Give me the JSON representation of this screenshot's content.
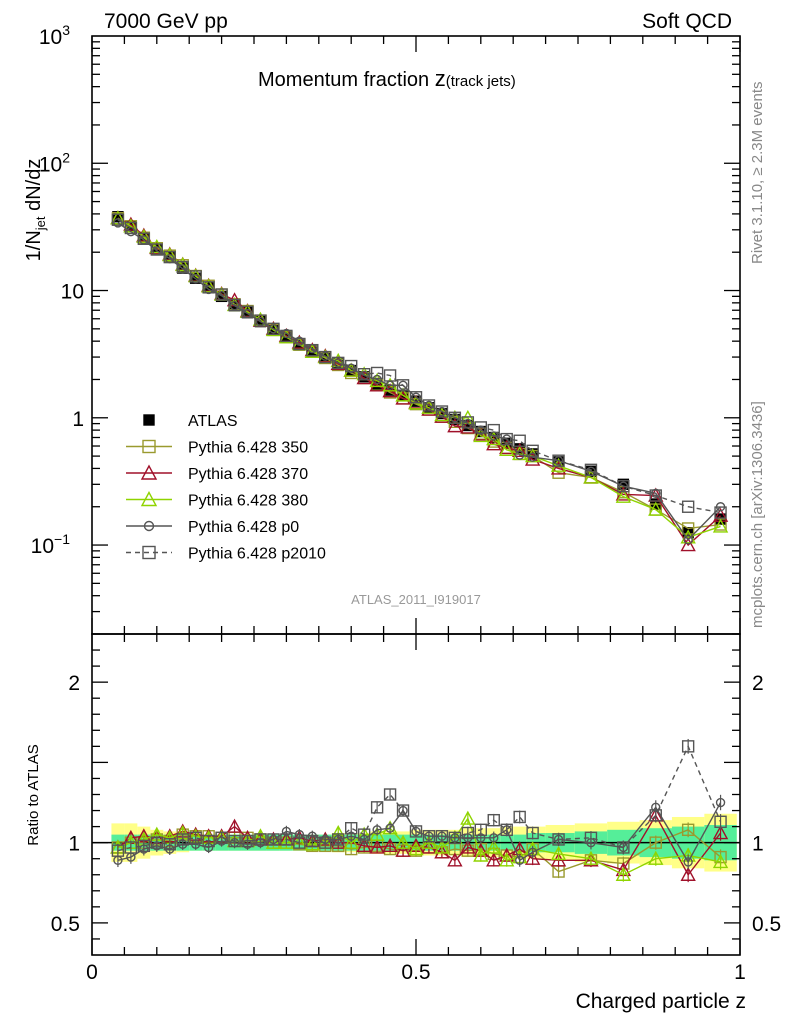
{
  "header": {
    "left": "7000 GeV pp",
    "right": "Soft QCD"
  },
  "side_labels": {
    "rivet": "Rivet 3.1.10, ≥ 2.3M events",
    "mcplots": "mcplots.cern.ch [arXiv:1306.3436]"
  },
  "watermark": "ATLAS_2011_I919017",
  "chart_data": [
    {
      "type": "line",
      "title": "Momentum fraction",
      "title_suffix": "(track jets)",
      "ylabel": "1/N_jet dN/dz",
      "yscale": "log",
      "ylim": [
        0.02,
        1000
      ],
      "xlim": [
        0,
        1.0
      ],
      "ytick_labels": [
        "10^-1",
        "1",
        "10",
        "10^2",
        "10^3"
      ],
      "legend_position": "lower-left",
      "x": [
        0.04,
        0.06,
        0.08,
        0.1,
        0.12,
        0.14,
        0.16,
        0.18,
        0.2,
        0.22,
        0.24,
        0.26,
        0.28,
        0.3,
        0.32,
        0.34,
        0.36,
        0.38,
        0.4,
        0.42,
        0.44,
        0.46,
        0.48,
        0.5,
        0.52,
        0.54,
        0.56,
        0.58,
        0.6,
        0.62,
        0.64,
        0.66,
        0.68,
        0.72,
        0.77,
        0.82,
        0.87,
        0.92,
        0.97
      ],
      "series": [
        {
          "name": "ATLAS",
          "color": "#000000",
          "marker": "filled-square",
          "values": [
            38,
            32,
            26,
            21,
            18.5,
            15,
            12.5,
            10.5,
            9.0,
            7.6,
            6.7,
            5.7,
            4.9,
            4.3,
            3.8,
            3.35,
            3.0,
            2.65,
            2.35,
            2.1,
            1.85,
            1.65,
            1.5,
            1.35,
            1.2,
            1.08,
            0.97,
            0.87,
            0.78,
            0.7,
            0.63,
            0.57,
            0.52,
            0.45,
            0.38,
            0.3,
            0.21,
            0.125,
            0.16
          ]
        },
        {
          "name": "Pythia 6.428 350",
          "color": "#9a9a2e",
          "marker": "open-square",
          "values": [
            37,
            32,
            26,
            21.5,
            18.8,
            15.8,
            13.0,
            10.9,
            9.3,
            7.8,
            6.9,
            5.8,
            4.9,
            4.3,
            3.75,
            3.3,
            2.95,
            2.6,
            2.25,
            2.05,
            1.82,
            1.58,
            1.42,
            1.28,
            1.16,
            1.02,
            0.93,
            0.83,
            0.75,
            0.65,
            0.58,
            0.52,
            0.5,
            0.37,
            0.34,
            0.26,
            0.19,
            0.135,
            0.145
          ]
        },
        {
          "name": "Pythia 6.428 370",
          "color": "#a0102a",
          "marker": "open-triangle",
          "values": [
            37,
            33,
            27,
            21.6,
            19.2,
            16.0,
            13.1,
            10.9,
            9.4,
            8.4,
            6.9,
            5.8,
            5.0,
            4.4,
            3.9,
            3.4,
            3.05,
            2.65,
            2.35,
            2.05,
            1.8,
            1.62,
            1.42,
            1.32,
            1.16,
            1.02,
            0.86,
            0.84,
            0.74,
            0.62,
            0.58,
            0.55,
            0.47,
            0.4,
            0.34,
            0.25,
            0.245,
            0.1,
            0.17
          ]
        },
        {
          "name": "Pythia 6.428 380",
          "color": "#8fd400",
          "marker": "open-triangle",
          "values": [
            37,
            32,
            26.5,
            22,
            19.0,
            15.9,
            13.0,
            10.8,
            9.3,
            7.7,
            6.8,
            5.9,
            4.9,
            4.3,
            3.8,
            3.3,
            3.0,
            2.8,
            2.35,
            2.2,
            1.95,
            1.8,
            1.5,
            1.3,
            1.2,
            1.05,
            1.0,
            1.0,
            0.72,
            0.68,
            0.56,
            0.52,
            0.5,
            0.42,
            0.34,
            0.24,
            0.19,
            0.115,
            0.14
          ]
        },
        {
          "name": "Pythia 6.428 p0",
          "color": "#555555",
          "marker": "open-circle",
          "values": [
            34,
            29,
            25,
            20.5,
            17.8,
            14.8,
            12.4,
            10.2,
            9.1,
            7.6,
            6.6,
            5.7,
            5.0,
            4.6,
            4.0,
            3.5,
            3.05,
            2.7,
            2.45,
            2.15,
            2.0,
            1.8,
            1.8,
            1.45,
            1.25,
            1.12,
            1.0,
            0.9,
            0.8,
            0.72,
            0.68,
            0.51,
            0.49,
            0.46,
            0.38,
            0.29,
            0.255,
            0.11,
            0.2
          ]
        },
        {
          "name": "Pythia 6.428 p2010",
          "color": "#555555",
          "marker": "open-square",
          "dashed": true,
          "values": [
            36,
            31,
            25.5,
            21,
            18.3,
            15.3,
            12.9,
            10.6,
            9.3,
            7.7,
            6.8,
            5.8,
            5.0,
            4.4,
            3.8,
            3.4,
            3.0,
            2.7,
            2.55,
            2.2,
            2.25,
            2.15,
            1.8,
            1.45,
            1.25,
            1.12,
            1.0,
            0.92,
            0.84,
            0.8,
            0.68,
            0.66,
            0.55,
            0.46,
            0.39,
            0.29,
            0.245,
            0.2,
            0.18
          ]
        }
      ]
    },
    {
      "type": "line",
      "ylabel": "Ratio to ATLAS",
      "xlabel": "Charged particle z",
      "ylim": [
        0.3,
        2.3
      ],
      "xlim": [
        0,
        1.0
      ],
      "ytick_labels": [
        "0.5",
        "1",
        "2"
      ],
      "xtick_labels": [
        "0",
        "0.5",
        "1"
      ],
      "x": [
        0.04,
        0.06,
        0.08,
        0.1,
        0.12,
        0.14,
        0.16,
        0.18,
        0.2,
        0.22,
        0.24,
        0.26,
        0.28,
        0.3,
        0.32,
        0.34,
        0.36,
        0.38,
        0.4,
        0.42,
        0.44,
        0.46,
        0.48,
        0.5,
        0.52,
        0.54,
        0.56,
        0.58,
        0.6,
        0.62,
        0.64,
        0.66,
        0.68,
        0.72,
        0.77,
        0.82,
        0.87,
        0.92,
        0.97
      ],
      "band_stat_halfwidth": [
        0.05,
        0.05,
        0.05,
        0.05,
        0.05,
        0.05,
        0.05,
        0.05,
        0.05,
        0.05,
        0.05,
        0.05,
        0.05,
        0.05,
        0.05,
        0.05,
        0.05,
        0.05,
        0.05,
        0.05,
        0.05,
        0.05,
        0.05,
        0.05,
        0.05,
        0.05,
        0.05,
        0.05,
        0.05,
        0.05,
        0.05,
        0.05,
        0.06,
        0.06,
        0.07,
        0.08,
        0.09,
        0.1,
        0.11
      ],
      "band_total_halfwidth": [
        0.12,
        0.12,
        0.1,
        0.08,
        0.07,
        0.06,
        0.05,
        0.05,
        0.05,
        0.05,
        0.05,
        0.05,
        0.05,
        0.05,
        0.05,
        0.05,
        0.05,
        0.06,
        0.06,
        0.06,
        0.07,
        0.07,
        0.07,
        0.08,
        0.08,
        0.08,
        0.08,
        0.09,
        0.09,
        0.09,
        0.1,
        0.1,
        0.1,
        0.11,
        0.12,
        0.13,
        0.14,
        0.16,
        0.18
      ],
      "series": [
        {
          "name": "Pythia 6.428 350",
          "color": "#9a9a2e",
          "values": [
            0.97,
            1.0,
            1.0,
            1.02,
            1.01,
            1.05,
            1.04,
            1.04,
            1.03,
            1.03,
            1.03,
            1.02,
            1.0,
            1.0,
            0.99,
            0.98,
            0.98,
            0.98,
            0.96,
            0.97,
            0.98,
            0.96,
            0.95,
            0.95,
            0.97,
            0.94,
            0.96,
            0.95,
            0.96,
            0.93,
            0.92,
            0.91,
            0.96,
            0.82,
            0.89,
            0.87,
            1.0,
            1.08,
            0.91
          ]
        },
        {
          "name": "Pythia 6.428 370",
          "color": "#a0102a",
          "values": [
            0.97,
            1.03,
            1.04,
            1.03,
            1.04,
            1.07,
            1.05,
            1.04,
            1.04,
            1.1,
            1.03,
            1.02,
            1.02,
            1.02,
            1.03,
            1.01,
            1.02,
            1.0,
            1.0,
            0.98,
            0.97,
            0.98,
            0.95,
            0.98,
            0.97,
            0.94,
            0.89,
            0.97,
            0.95,
            0.89,
            0.92,
            0.96,
            0.9,
            0.89,
            0.89,
            0.83,
            1.17,
            0.8,
            1.06
          ]
        },
        {
          "name": "Pythia 6.428 380",
          "color": "#8fd400",
          "values": [
            0.97,
            1.0,
            1.02,
            1.05,
            1.03,
            1.06,
            1.04,
            1.03,
            1.03,
            1.01,
            1.01,
            1.04,
            1.0,
            1.0,
            1.0,
            0.99,
            1.0,
            1.06,
            1.0,
            1.05,
            1.05,
            1.09,
            1.0,
            0.96,
            1.0,
            0.97,
            1.03,
            1.15,
            0.92,
            0.97,
            0.89,
            0.91,
            0.96,
            0.93,
            0.9,
            0.8,
            0.9,
            0.92,
            0.88
          ]
        },
        {
          "name": "Pythia 6.428 p0",
          "color": "#555555",
          "values": [
            0.89,
            0.91,
            0.96,
            0.98,
            0.96,
            0.99,
            0.99,
            0.97,
            1.01,
            1.0,
            0.99,
            1.0,
            1.02,
            1.07,
            1.05,
            1.04,
            1.02,
            1.02,
            1.04,
            1.02,
            1.08,
            1.09,
            1.2,
            1.07,
            1.04,
            1.04,
            1.03,
            1.03,
            1.03,
            1.03,
            1.08,
            0.89,
            0.94,
            1.02,
            1.0,
            0.97,
            1.22,
            0.88,
            1.25
          ]
        },
        {
          "name": "Pythia 6.428 p2010",
          "color": "#555555",
          "dashed": true,
          "values": [
            0.95,
            0.97,
            0.98,
            1.0,
            0.99,
            1.02,
            1.03,
            1.01,
            1.03,
            1.01,
            1.01,
            1.02,
            1.02,
            1.02,
            1.0,
            1.01,
            1.0,
            1.02,
            1.09,
            1.05,
            1.22,
            1.3,
            1.2,
            1.07,
            1.04,
            1.04,
            1.03,
            1.06,
            1.08,
            1.14,
            1.08,
            1.16,
            1.06,
            1.02,
            1.03,
            0.97,
            1.17,
            1.6,
            1.13
          ]
        }
      ]
    }
  ]
}
